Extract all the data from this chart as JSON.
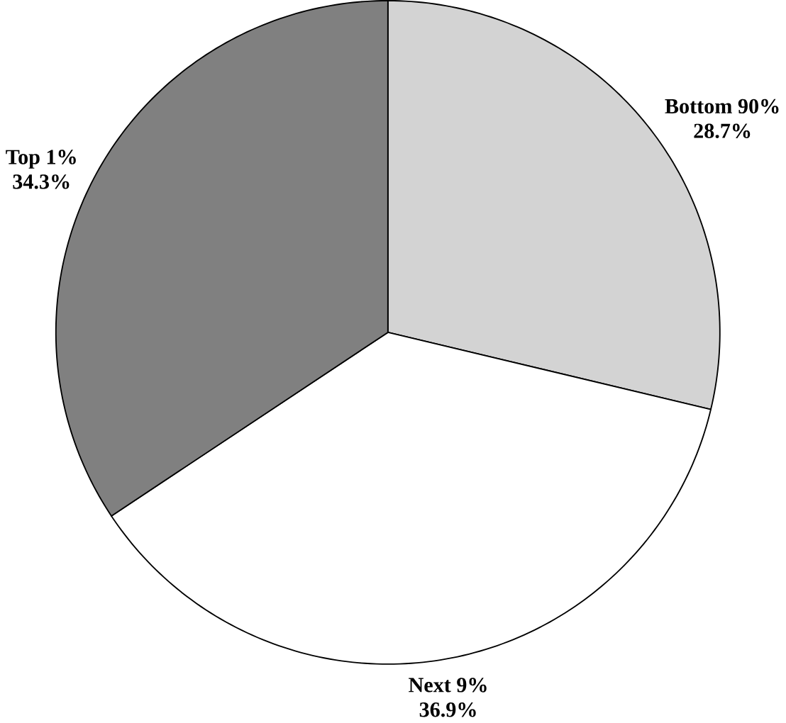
{
  "chart_data": {
    "type": "pie",
    "categories": [
      "Bottom 90%",
      "Next 9%",
      "Top 1%"
    ],
    "values": [
      28.7,
      36.9,
      34.3
    ],
    "value_labels": [
      "28.7%",
      "36.9%",
      "34.3%"
    ],
    "colors": [
      "#d3d3d3",
      "#ffffff",
      "#808080"
    ]
  }
}
